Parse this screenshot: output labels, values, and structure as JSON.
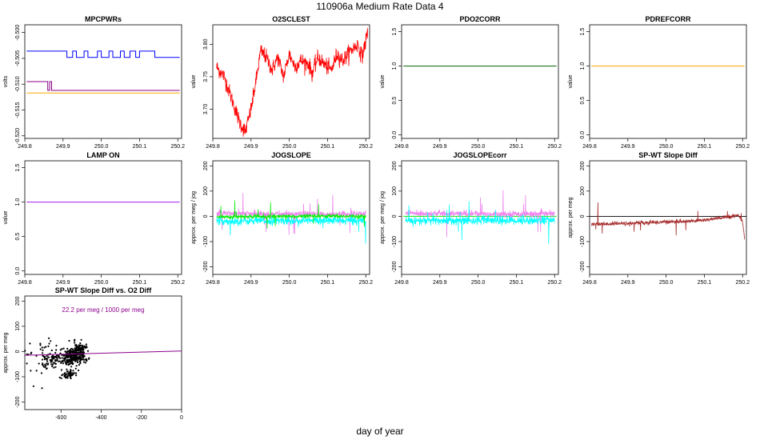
{
  "page": {
    "title": "110906a   Medium Rate Data 4",
    "xlabel": "day of year"
  },
  "chart_data": [
    {
      "id": "mpcpwrs",
      "type": "line",
      "title": "MPCPWRs",
      "ylabel": "volts",
      "xlim": [
        249.8,
        250.21
      ],
      "ylim": [
        -0.5205,
        -0.4985
      ],
      "xticks": [
        249.8,
        249.9,
        250.0,
        250.1,
        250.2
      ],
      "xtick_labels": [
        "249.8",
        "249.9",
        "250.0",
        "250.1",
        "250.2"
      ],
      "yticks": [
        -0.52,
        -0.515,
        -0.51,
        -0.505,
        -0.5
      ],
      "ytick_labels": [
        "-0.520",
        "-0.515",
        "-0.510",
        "-0.505",
        "-0.500"
      ],
      "series": [
        {
          "color": "#0000ff",
          "kind": "step",
          "x": [
            249.805,
            249.91,
            249.91,
            249.925,
            249.925,
            249.935,
            249.935,
            249.955,
            249.955,
            249.965,
            249.965,
            249.99,
            249.99,
            250.0,
            250.0,
            250.02,
            250.02,
            250.03,
            250.03,
            250.05,
            250.05,
            250.06,
            250.06,
            250.075,
            250.075,
            250.09,
            250.09,
            250.1,
            250.1,
            250.14,
            250.14,
            250.205
          ],
          "y": [
            -0.5036,
            -0.5036,
            -0.5048,
            -0.5048,
            -0.5036,
            -0.5036,
            -0.5048,
            -0.5048,
            -0.5036,
            -0.5036,
            -0.5048,
            -0.5048,
            -0.5036,
            -0.5036,
            -0.5048,
            -0.5048,
            -0.5036,
            -0.5036,
            -0.5048,
            -0.5048,
            -0.5036,
            -0.5036,
            -0.5048,
            -0.5048,
            -0.5036,
            -0.5036,
            -0.5048,
            -0.5048,
            -0.5036,
            -0.5036,
            -0.5048,
            -0.5048
          ]
        },
        {
          "color": "#8b008b",
          "kind": "step",
          "x": [
            249.805,
            249.86,
            249.86,
            249.865,
            249.865,
            249.87,
            249.87,
            250.205
          ],
          "y": [
            -0.5095,
            -0.5095,
            -0.5112,
            -0.5112,
            -0.5095,
            -0.5095,
            -0.5112,
            -0.5112
          ]
        },
        {
          "color": "#ffa500",
          "kind": "step",
          "x": [
            249.805,
            250.205
          ],
          "y": [
            -0.5117,
            -0.5117
          ]
        }
      ]
    },
    {
      "id": "o2sclest",
      "type": "line",
      "title": "O2SCLEST",
      "ylabel": "value",
      "xlim": [
        249.8,
        250.21
      ],
      "ylim": [
        3.655,
        3.83
      ],
      "xticks": [
        249.8,
        249.9,
        250.0,
        250.1,
        250.2
      ],
      "xtick_labels": [
        "249.8",
        "249.9",
        "250.0",
        "250.1",
        "250.2"
      ],
      "yticks": [
        3.7,
        3.75,
        3.8
      ],
      "ytick_labels": [
        "3.70",
        "3.75",
        "3.80"
      ],
      "series": [
        {
          "color": "#ff0000",
          "kind": "noisy",
          "noise": 0.006,
          "x": [
            249.81,
            249.83,
            249.85,
            249.87,
            249.885,
            249.9,
            249.915,
            249.925,
            249.94,
            249.955,
            249.97,
            249.985,
            250.0,
            250.015,
            250.03,
            250.05,
            250.06,
            250.075,
            250.09,
            250.11,
            250.125,
            250.14,
            250.16,
            250.18,
            250.19,
            250.2,
            250.205
          ],
          "y": [
            3.765,
            3.75,
            3.715,
            3.68,
            3.665,
            3.7,
            3.75,
            3.79,
            3.78,
            3.76,
            3.78,
            3.75,
            3.785,
            3.765,
            3.775,
            3.77,
            3.755,
            3.78,
            3.77,
            3.76,
            3.785,
            3.775,
            3.79,
            3.8,
            3.78,
            3.805,
            3.82
          ]
        }
      ]
    },
    {
      "id": "pdo2corr",
      "type": "line",
      "title": "PDO2CORR",
      "ylabel": "value",
      "xlim": [
        249.8,
        250.21
      ],
      "ylim": [
        -0.05,
        1.6
      ],
      "xticks": [
        249.8,
        249.9,
        250.0,
        250.1,
        250.2
      ],
      "xtick_labels": [
        "249.8",
        "249.9",
        "250.0",
        "250.1",
        "250.2"
      ],
      "yticks": [
        0,
        0.5,
        1.0,
        1.5
      ],
      "ytick_labels": [
        "0.0",
        "0.5",
        "1.0",
        "1.5"
      ],
      "series": [
        {
          "color": "#006400",
          "kind": "step",
          "x": [
            249.805,
            250.205
          ],
          "y": [
            1.0,
            1.0
          ]
        }
      ]
    },
    {
      "id": "pdrefcorr",
      "type": "line",
      "title": "PDREFCORR",
      "ylabel": "value",
      "xlim": [
        249.8,
        250.21
      ],
      "ylim": [
        -0.05,
        1.6
      ],
      "xticks": [
        249.8,
        249.9,
        250.0,
        250.1,
        250.2
      ],
      "xtick_labels": [
        "249.8",
        "249.9",
        "250.0",
        "250.1",
        "250.2"
      ],
      "yticks": [
        0,
        0.5,
        1.0,
        1.5
      ],
      "ytick_labels": [
        "0.0",
        "0.5",
        "1.0",
        "1.5"
      ],
      "series": [
        {
          "color": "#ffa500",
          "kind": "step",
          "x": [
            249.805,
            250.205
          ],
          "y": [
            1.0,
            1.0
          ]
        }
      ]
    },
    {
      "id": "lamp-on",
      "type": "line",
      "title": "LAMP ON",
      "ylabel": "value",
      "xlim": [
        249.8,
        250.21
      ],
      "ylim": [
        -0.05,
        1.6
      ],
      "xticks": [
        249.8,
        249.9,
        250.0,
        250.1,
        250.2
      ],
      "xtick_labels": [
        "249.8",
        "249.9",
        "250.0",
        "250.1",
        "250.2"
      ],
      "yticks": [
        0,
        0.5,
        1.0,
        1.5
      ],
      "ytick_labels": [
        "0.0",
        "0.5",
        "1.0",
        "1.5"
      ],
      "series": [
        {
          "color": "#a020f0",
          "kind": "step",
          "x": [
            249.805,
            250.205
          ],
          "y": [
            1.0,
            1.0
          ]
        }
      ]
    },
    {
      "id": "jogslope",
      "type": "line",
      "title": "JOGSLOPE",
      "ylabel": "approx. per meg / jog",
      "xlim": [
        249.8,
        250.21
      ],
      "ylim": [
        -230,
        220
      ],
      "xticks": [
        249.8,
        249.9,
        250.0,
        250.1,
        250.2
      ],
      "xtick_labels": [
        "249.8",
        "249.9",
        "250.0",
        "250.1",
        "250.2"
      ],
      "yticks": [
        -200,
        -100,
        0,
        100,
        200
      ],
      "ytick_labels": [
        "-200",
        "-100",
        "0",
        "100",
        "200"
      ],
      "series": [
        {
          "color": "#ee82ee",
          "kind": "noisy",
          "noise": 6,
          "x": [
            249.81,
            249.9,
            250.0,
            250.1,
            250.2
          ],
          "y": [
            12,
            10,
            9,
            8,
            12
          ]
        },
        {
          "color": "#00ffff",
          "kind": "noisy",
          "noise": 8,
          "x": [
            249.81,
            249.9,
            250.0,
            250.1,
            250.2
          ],
          "y": [
            -20,
            -18,
            -17,
            -17,
            -16
          ]
        },
        {
          "color": "#00ee00",
          "kind": "noisy",
          "noise": 4,
          "x": [
            249.81,
            249.9,
            250.0,
            250.1,
            250.2
          ],
          "y": [
            -2,
            -1,
            0,
            0,
            0
          ]
        }
      ]
    },
    {
      "id": "jogslopecorr",
      "type": "line",
      "title": "JOGSLOPEcorr",
      "ylabel": "approx. per meg / jog",
      "xlim": [
        249.8,
        250.21
      ],
      "ylim": [
        -230,
        220
      ],
      "xticks": [
        249.8,
        249.9,
        250.0,
        250.1,
        250.2
      ],
      "xtick_labels": [
        "249.8",
        "249.9",
        "250.0",
        "250.1",
        "250.2"
      ],
      "yticks": [
        -200,
        -100,
        0,
        100,
        200
      ],
      "ytick_labels": [
        "-200",
        "-100",
        "0",
        "100",
        "200"
      ],
      "series": [
        {
          "color": "#00ee00",
          "kind": "step",
          "x": [
            249.805,
            250.205
          ],
          "y": [
            0,
            0
          ]
        },
        {
          "color": "#ee82ee",
          "kind": "noisy",
          "noise": 6,
          "x": [
            249.81,
            249.9,
            250.0,
            250.1,
            250.2
          ],
          "y": [
            12,
            11,
            10,
            9,
            10
          ]
        },
        {
          "color": "#00ffff",
          "kind": "noisy",
          "noise": 9,
          "x": [
            249.81,
            249.9,
            250.0,
            250.1,
            250.2
          ],
          "y": [
            -18,
            -17,
            -16,
            -16,
            -15
          ]
        }
      ]
    },
    {
      "id": "sp-wt-slope-diff",
      "type": "line",
      "title": "SP-WT Slope Diff",
      "ylabel": "approx. per meg",
      "xlim": [
        249.8,
        250.21
      ],
      "ylim": [
        -230,
        220
      ],
      "xticks": [
        249.8,
        249.9,
        250.0,
        250.1,
        250.2
      ],
      "xtick_labels": [
        "249.8",
        "249.9",
        "250.0",
        "250.1",
        "250.2"
      ],
      "yticks": [
        -200,
        -100,
        0,
        100,
        200
      ],
      "ytick_labels": [
        "-200",
        "-100",
        "0",
        "100",
        "200"
      ],
      "hline": 0,
      "series": [
        {
          "color": "#a52a2a",
          "kind": "noisy",
          "noise": 4,
          "x": [
            249.805,
            249.85,
            249.9,
            249.95,
            250.0,
            250.05,
            250.1,
            250.15,
            250.19,
            250.2,
            250.205
          ],
          "y": [
            -32,
            -30,
            -28,
            -25,
            -22,
            -20,
            -15,
            -5,
            5,
            -20,
            -90
          ]
        }
      ]
    },
    {
      "id": "sp-wt-vs-o2",
      "type": "scatter",
      "title": "SP-WT Slope Diff vs. O2 Diff",
      "ylabel": "approx. per meg",
      "xlim": [
        -780,
        0
      ],
      "ylim": [
        -230,
        220
      ],
      "xticks": [
        -600,
        -400,
        -200,
        0
      ],
      "xtick_labels": [
        "-600",
        "-400",
        "-200",
        "0"
      ],
      "yticks": [
        -200,
        -100,
        0,
        100,
        200
      ],
      "ytick_labels": [
        "-200",
        "-100",
        "0",
        "100",
        "200"
      ],
      "annotation": "22.2 per meg / 1000 per meg",
      "fit": {
        "color": "#8b008b",
        "slope": 0.0222,
        "intercept": -15
      },
      "clusters": [
        {
          "cx": -545,
          "cy": -25,
          "sx": 30,
          "sy": 12,
          "n": 220
        },
        {
          "cx": -510,
          "cy": 5,
          "sx": 18,
          "sy": 15,
          "n": 120
        },
        {
          "cx": -560,
          "cy": -90,
          "sx": 18,
          "sy": 10,
          "n": 60
        },
        {
          "cx": -650,
          "cy": -30,
          "sx": 25,
          "sy": 15,
          "n": 60
        },
        {
          "cx": -700,
          "cy": -20,
          "sx": 60,
          "sy": 55,
          "n": 50
        }
      ]
    }
  ]
}
